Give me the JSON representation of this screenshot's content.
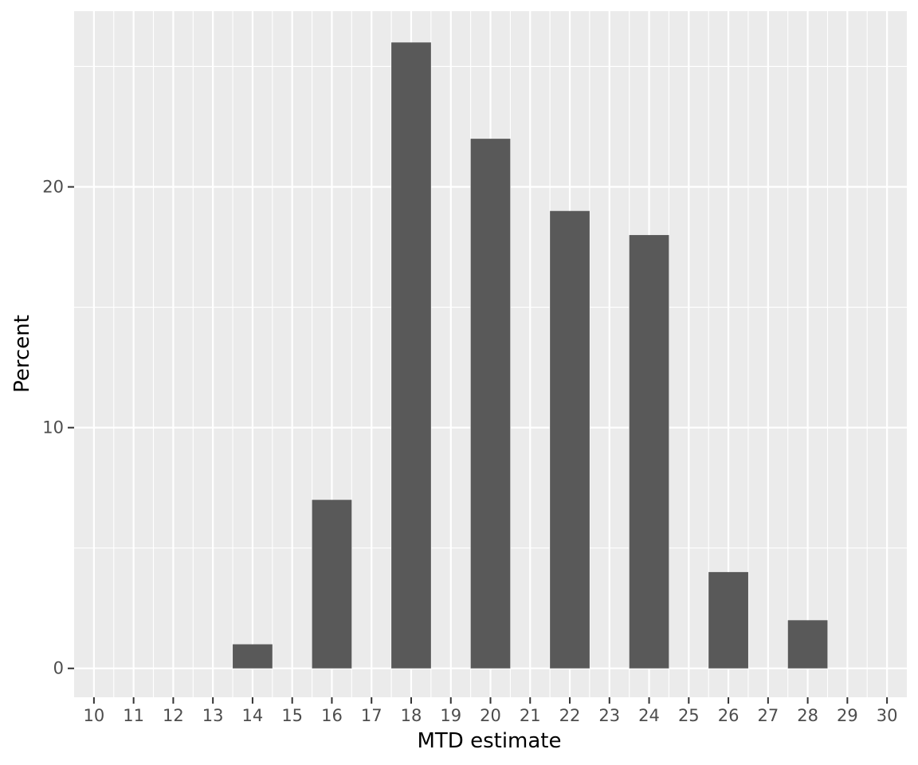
{
  "chart_data": {
    "type": "bar",
    "title": "",
    "xlabel": "MTD estimate",
    "ylabel": "Percent",
    "x_ticks": [
      10,
      11,
      12,
      13,
      14,
      15,
      16,
      17,
      18,
      19,
      20,
      21,
      22,
      23,
      24,
      25,
      26,
      27,
      28,
      29,
      30
    ],
    "x_tick_labels": [
      "10",
      "11",
      "12",
      "13",
      "14",
      "15",
      "16",
      "17",
      "18",
      "19",
      "20",
      "21",
      "22",
      "23",
      "24",
      "25",
      "26",
      "27",
      "28",
      "29",
      "30"
    ],
    "xlim": [
      9.5,
      30.5
    ],
    "y_ticks": [
      0,
      10,
      20
    ],
    "y_tick_labels": [
      "0",
      "10",
      "20"
    ],
    "ylim": [
      -1.2,
      27.3
    ],
    "categories": [
      14,
      16,
      18,
      20,
      22,
      24,
      26,
      28
    ],
    "values": [
      1,
      7,
      26,
      22,
      19,
      18,
      4,
      2
    ],
    "bar_width": 1,
    "grid": true,
    "legend": "none",
    "colors": {
      "bar": "#595959",
      "panel": "#ebebeb",
      "grid": "#ffffff"
    }
  }
}
